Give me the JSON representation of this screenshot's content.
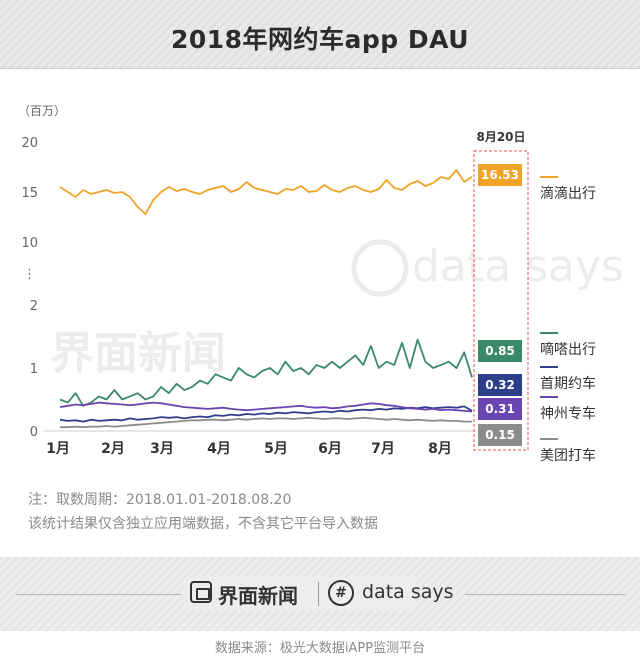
{
  "header": {
    "title": "2018年网约车app DAU"
  },
  "chart_data": {
    "type": "line",
    "yunit": "（百万）",
    "axis_break": true,
    "y_ticks_lower": [
      0,
      1,
      2
    ],
    "y_ticks_upper": [
      10,
      15,
      20
    ],
    "x_ticks": [
      "1月",
      "2月",
      "3月",
      "4月",
      "5月",
      "6月",
      "7月",
      "8月"
    ],
    "highlight_label": "8月20日",
    "series": [
      {
        "name": "滴滴出行",
        "color": "#f0a326",
        "last_value": "16.53",
        "values": [
          15.5,
          15.0,
          14.5,
          15.2,
          14.8,
          15.0,
          15.2,
          14.9,
          15.0,
          14.5,
          13.5,
          12.8,
          14.2,
          15.0,
          15.5,
          15.1,
          15.3,
          15.0,
          14.8,
          15.2,
          15.4,
          15.6,
          15.0,
          15.3,
          16.0,
          15.4,
          15.2,
          15.0,
          14.8,
          15.3,
          15.2,
          15.6,
          15.0,
          15.1,
          15.7,
          15.2,
          15.0,
          15.4,
          15.6,
          15.2,
          15.0,
          15.3,
          16.2,
          15.4,
          15.2,
          15.8,
          16.1,
          15.6,
          15.9,
          16.5,
          16.3,
          17.2,
          16.0,
          16.53
        ]
      },
      {
        "name": "嘀嗒出行",
        "color": "#3a8a6a",
        "last_value": "0.85",
        "values": [
          0.5,
          0.45,
          0.6,
          0.4,
          0.45,
          0.55,
          0.5,
          0.65,
          0.5,
          0.55,
          0.6,
          0.5,
          0.55,
          0.7,
          0.6,
          0.75,
          0.65,
          0.7,
          0.8,
          0.75,
          0.9,
          0.85,
          0.8,
          1.0,
          0.9,
          0.85,
          0.95,
          1.0,
          0.9,
          1.1,
          0.95,
          1.0,
          0.9,
          1.05,
          1.0,
          1.1,
          1.0,
          1.1,
          1.2,
          1.05,
          1.35,
          1.0,
          1.1,
          1.05,
          1.4,
          1.0,
          1.45,
          1.1,
          1.0,
          1.05,
          1.1,
          1.0,
          1.25,
          0.85
        ]
      },
      {
        "name": "首期约车",
        "color": "#2e3f8a",
        "last_value": "0.32",
        "values": [
          0.18,
          0.16,
          0.17,
          0.15,
          0.18,
          0.16,
          0.17,
          0.18,
          0.17,
          0.2,
          0.18,
          0.19,
          0.2,
          0.22,
          0.21,
          0.22,
          0.2,
          0.22,
          0.23,
          0.22,
          0.25,
          0.24,
          0.26,
          0.25,
          0.27,
          0.26,
          0.28,
          0.27,
          0.29,
          0.28,
          0.3,
          0.29,
          0.28,
          0.3,
          0.31,
          0.3,
          0.32,
          0.31,
          0.33,
          0.34,
          0.33,
          0.35,
          0.34,
          0.36,
          0.35,
          0.37,
          0.36,
          0.38,
          0.36,
          0.37,
          0.38,
          0.37,
          0.39,
          0.32
        ]
      },
      {
        "name": "神州专车",
        "color": "#6a46b3",
        "last_value": "0.31",
        "values": [
          0.38,
          0.4,
          0.42,
          0.41,
          0.43,
          0.45,
          0.44,
          0.43,
          0.42,
          0.41,
          0.42,
          0.44,
          0.45,
          0.44,
          0.42,
          0.4,
          0.38,
          0.37,
          0.36,
          0.35,
          0.36,
          0.37,
          0.35,
          0.34,
          0.33,
          0.34,
          0.35,
          0.36,
          0.37,
          0.38,
          0.39,
          0.4,
          0.38,
          0.37,
          0.38,
          0.36,
          0.37,
          0.39,
          0.4,
          0.42,
          0.44,
          0.43,
          0.41,
          0.4,
          0.38,
          0.36,
          0.35,
          0.34,
          0.35,
          0.33,
          0.34,
          0.33,
          0.32,
          0.31
        ]
      },
      {
        "name": "美团打车",
        "color": "#8c8c8c",
        "last_value": "0.15",
        "values": [
          0.06,
          0.06,
          0.07,
          0.06,
          0.07,
          0.07,
          0.08,
          0.07,
          0.08,
          0.09,
          0.1,
          0.11,
          0.12,
          0.13,
          0.14,
          0.15,
          0.16,
          0.17,
          0.17,
          0.18,
          0.18,
          0.17,
          0.18,
          0.19,
          0.18,
          0.19,
          0.2,
          0.19,
          0.2,
          0.2,
          0.19,
          0.2,
          0.21,
          0.2,
          0.19,
          0.2,
          0.2,
          0.19,
          0.2,
          0.21,
          0.2,
          0.19,
          0.18,
          0.19,
          0.18,
          0.17,
          0.18,
          0.17,
          0.16,
          0.17,
          0.16,
          0.16,
          0.15,
          0.15
        ]
      }
    ],
    "legend_position": "right"
  },
  "notes": {
    "line1": "注：取数周期：2018.01.01-2018.08.20",
    "line2": "该统计结果仅含独立应用端数据，不含其它平台导入数据"
  },
  "footer": {
    "brand_cn": "界面新闻",
    "brand_en": "data says",
    "source": "数据来源：极光大数据iAPP监测平台"
  }
}
